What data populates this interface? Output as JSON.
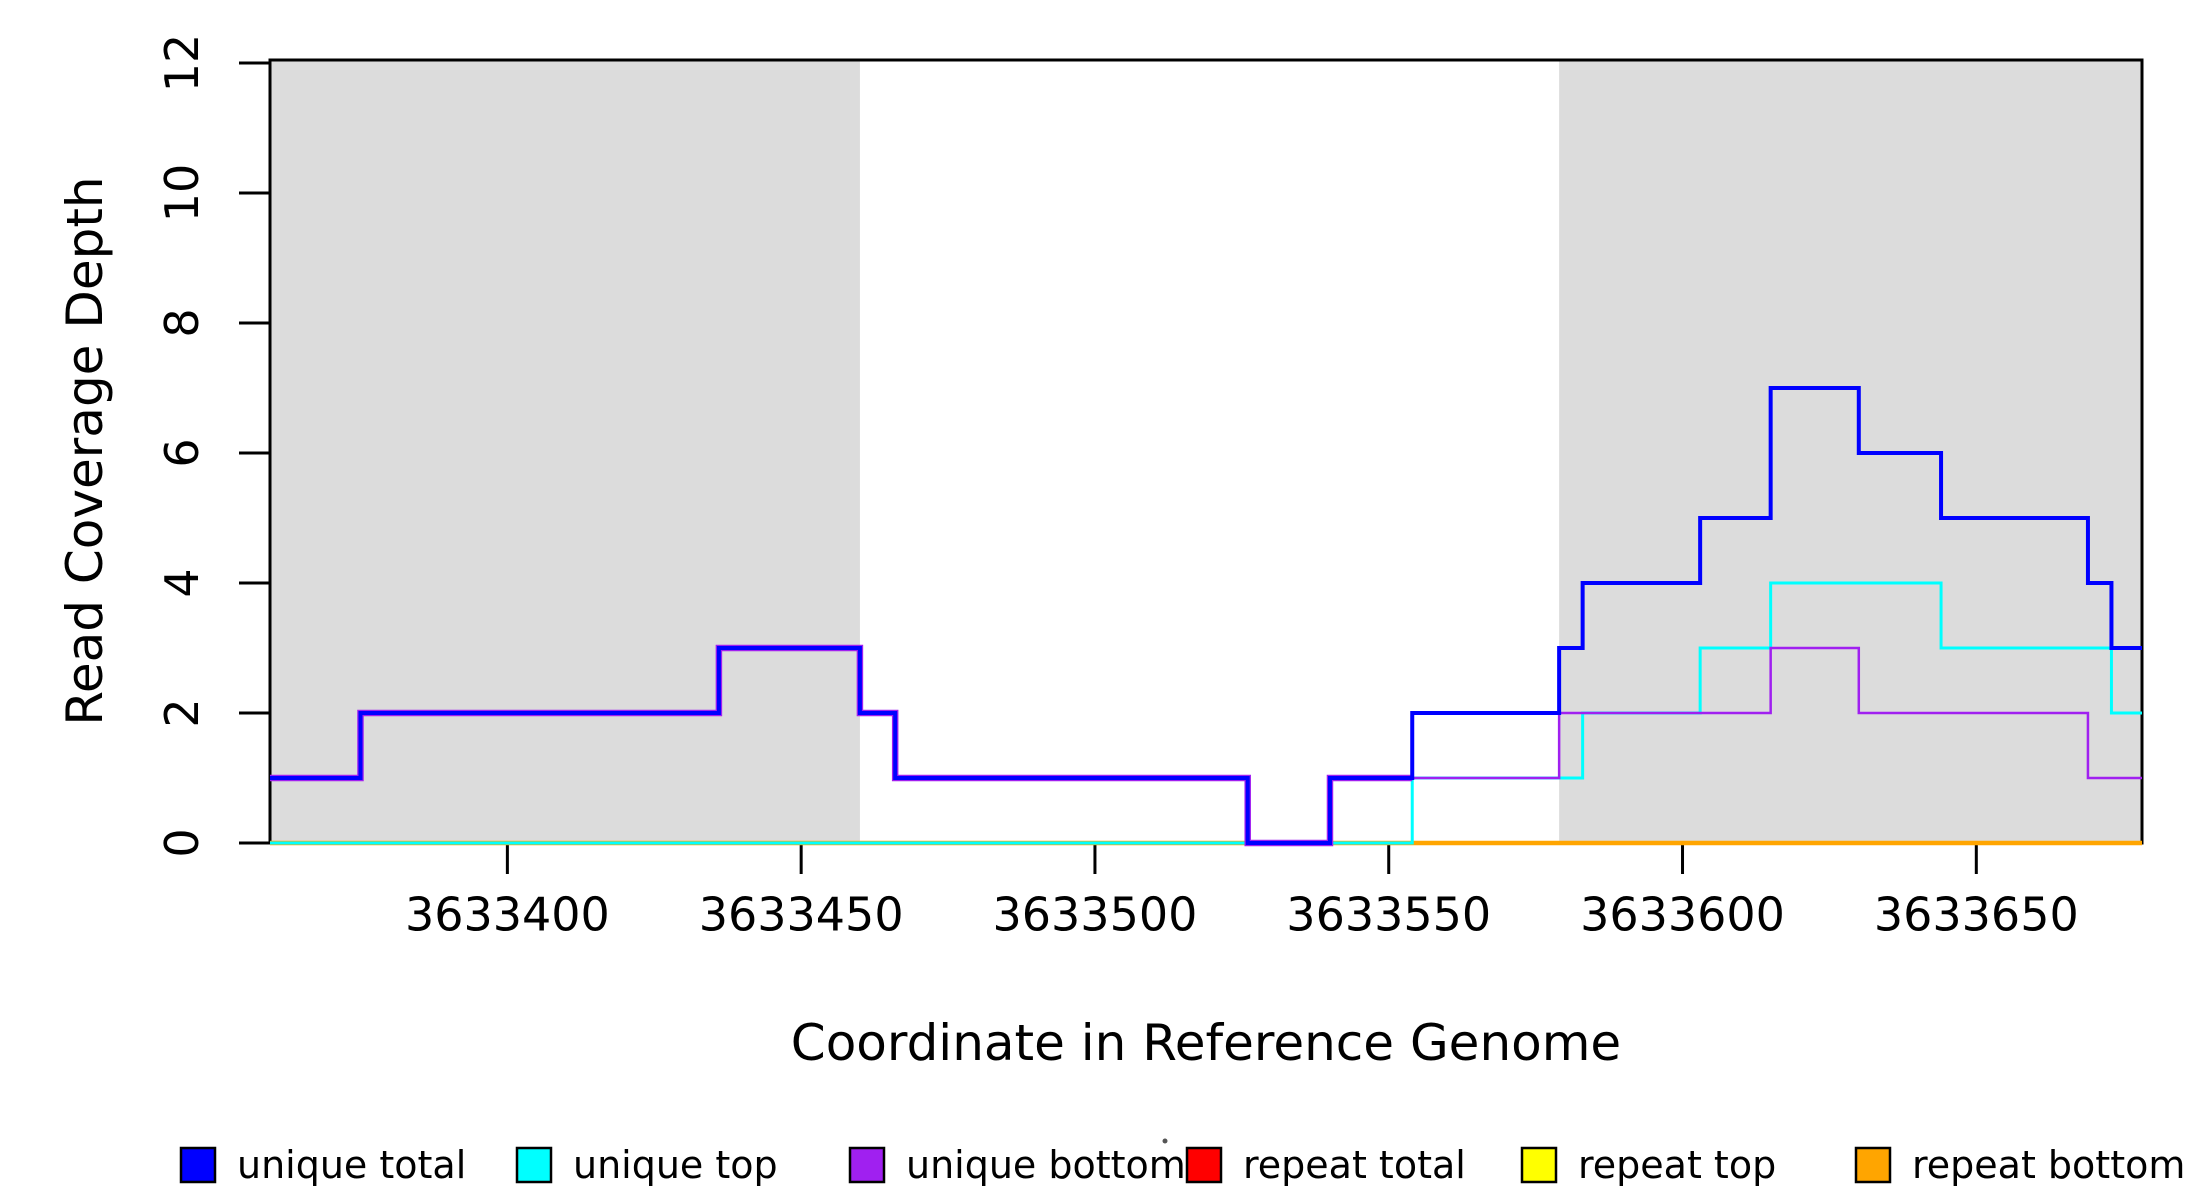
{
  "chart_data": {
    "type": "line",
    "subtype": "step-coverage",
    "title": "",
    "xlabel": "Coordinate in Reference Genome",
    "ylabel": "Read Coverage Depth",
    "xlim": [
      3633359.6,
      3633678.2
    ],
    "ylim": [
      0,
      12
    ],
    "x_ticks": [
      3633400,
      3633450,
      3633500,
      3633550,
      3633600,
      3633650
    ],
    "x_tick_labels": [
      "3633400",
      "3633450",
      "3633500",
      "3633550",
      "3633600",
      "3633650"
    ],
    "y_ticks": [
      0,
      2,
      4,
      6,
      8,
      10,
      12
    ],
    "y_tick_labels": [
      "0",
      "2",
      "4",
      "6",
      "8",
      "10",
      "12"
    ],
    "grid": false,
    "background_color": "#ffffff",
    "shaded_regions": {
      "color": "#DCDCDC",
      "regions": [
        {
          "x_start": 3633359.6,
          "x_end": 3633460
        },
        {
          "x_start": 3633579,
          "x_end": 3633678.2
        }
      ]
    },
    "series": [
      {
        "name": "repeat total",
        "color": "#FF0000",
        "width": 3.5,
        "steps": [
          [
            3633359.6,
            0
          ]
        ]
      },
      {
        "name": "repeat top",
        "color": "#FFFF00",
        "width": 3.5,
        "steps": [
          [
            3633359.6,
            0
          ]
        ]
      },
      {
        "name": "repeat bottom",
        "color": "#FFA500",
        "width": 4.5,
        "steps": [
          [
            3633359.6,
            0
          ]
        ]
      },
      {
        "name": "unique top",
        "color": "#00FFFF",
        "width": 3,
        "steps": [
          [
            3633359.6,
            0
          ],
          [
            3633554,
            1
          ],
          [
            3633583,
            2
          ],
          [
            3633603,
            3
          ],
          [
            3633615,
            4
          ],
          [
            3633644,
            3
          ],
          [
            3633673,
            2
          ]
        ]
      },
      {
        "name": "unique bottom",
        "color": "#A020F0",
        "width": 2.5,
        "underlay": {
          "x_end": 3633554,
          "width": 6.5
        },
        "steps": [
          [
            3633359.6,
            1
          ],
          [
            3633375,
            2
          ],
          [
            3633436,
            3
          ],
          [
            3633460,
            2
          ],
          [
            3633466,
            1
          ],
          [
            3633526,
            0
          ],
          [
            3633540,
            1
          ],
          [
            3633579,
            2
          ],
          [
            3633615,
            3
          ],
          [
            3633630,
            2
          ],
          [
            3633669,
            1
          ]
        ]
      },
      {
        "name": "unique total",
        "color": "#0000FF",
        "width": 4,
        "steps": [
          [
            3633359.6,
            1
          ],
          [
            3633375,
            2
          ],
          [
            3633436,
            3
          ],
          [
            3633460,
            2
          ],
          [
            3633466,
            1
          ],
          [
            3633526,
            0
          ],
          [
            3633540,
            1
          ],
          [
            3633554,
            2
          ],
          [
            3633579,
            3
          ],
          [
            3633583,
            4
          ],
          [
            3633603,
            5
          ],
          [
            3633615,
            7
          ],
          [
            3633630,
            6
          ],
          [
            3633644,
            5
          ],
          [
            3633669,
            4
          ],
          [
            3633673,
            3
          ]
        ]
      }
    ],
    "legend": {
      "position": "bottom-horizontal",
      "items": [
        {
          "label": "unique total",
          "color": "#0000FF"
        },
        {
          "label": "unique top",
          "color": "#00FFFF"
        },
        {
          "label": "unique bottom",
          "color": "#A020F0"
        },
        {
          "label": "repeat total",
          "color": "#FF0000"
        },
        {
          "label": "repeat top",
          "color": "#FFFF00"
        },
        {
          "label": "repeat bottom",
          "color": "#FFA500"
        }
      ]
    },
    "axis_color": "#000000"
  }
}
